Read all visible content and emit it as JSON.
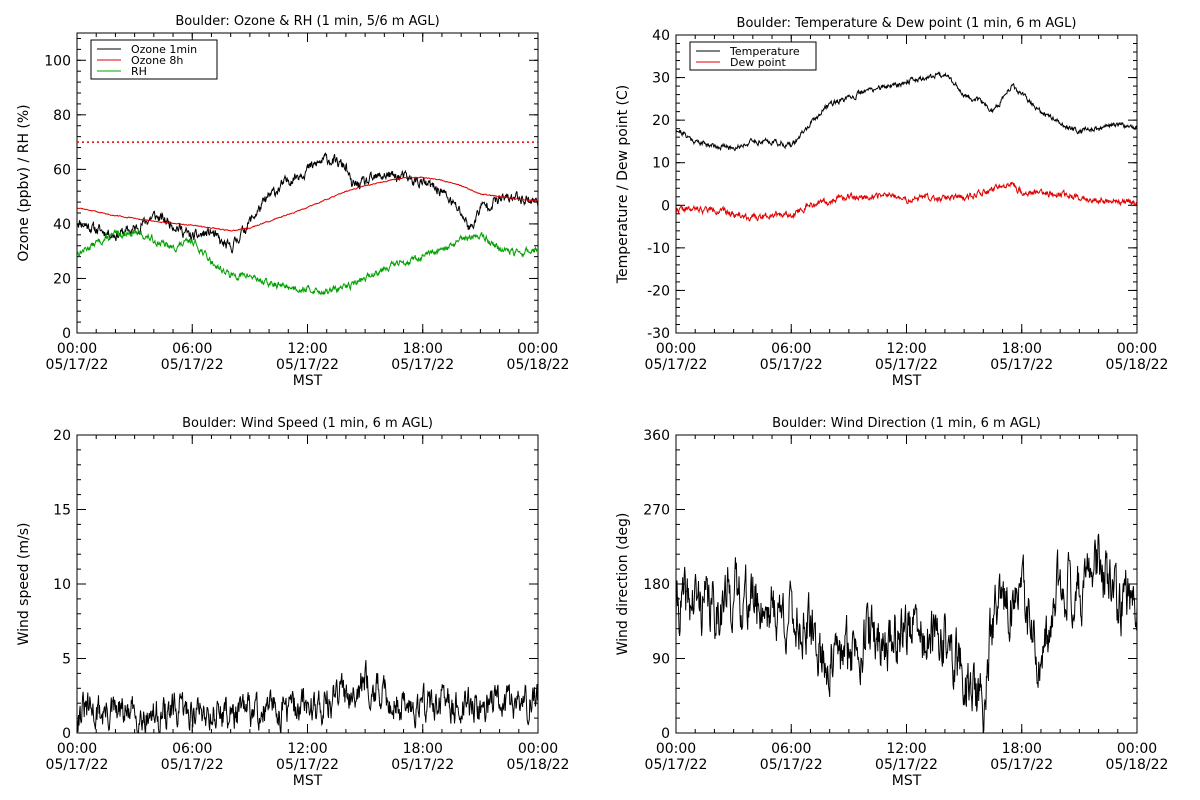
{
  "colors": {
    "black": "#000000",
    "red": "#e00000",
    "green": "#00a000"
  },
  "x_axis": {
    "title": "MST",
    "range_hours": [
      0,
      24
    ],
    "ticks": [
      {
        "h": 0,
        "time": "00:00",
        "date": "05/17/22"
      },
      {
        "h": 6,
        "time": "06:00",
        "date": "05/17/22"
      },
      {
        "h": 12,
        "time": "12:00",
        "date": "05/17/22"
      },
      {
        "h": 18,
        "time": "18:00",
        "date": "05/17/22"
      },
      {
        "h": 24,
        "time": "00:00",
        "date": "05/18/22"
      }
    ]
  },
  "chart_data": [
    {
      "type": "line",
      "title": "Boulder: Ozone & RH (1 min, 5/6 m AGL)",
      "xlabel": "MST",
      "ylabel": "Ozone (ppbv) / RH (%)",
      "ylim": [
        0,
        110
      ],
      "yticks": [
        0,
        20,
        40,
        60,
        80,
        100
      ],
      "legend": "top-left",
      "reference_line": {
        "y": 70,
        "color": "#e00000",
        "style": "dotted"
      },
      "series": [
        {
          "name": "Ozone 1min",
          "color": "#000000",
          "noise": 1.6,
          "seed": 11,
          "points": [
            [
              0,
              41
            ],
            [
              1,
              38
            ],
            [
              2,
              36
            ],
            [
              3,
              38
            ],
            [
              4,
              43
            ],
            [
              5,
              40
            ],
            [
              6,
              35
            ],
            [
              7,
              37
            ],
            [
              7.5,
              33
            ],
            [
              8,
              31
            ],
            [
              9,
              41
            ],
            [
              10,
              50
            ],
            [
              11,
              56
            ],
            [
              12,
              60
            ],
            [
              13,
              64
            ],
            [
              14,
              61
            ],
            [
              14.3,
              54
            ],
            [
              15,
              55
            ],
            [
              16,
              58
            ],
            [
              17,
              57
            ],
            [
              18,
              55
            ],
            [
              19,
              52
            ],
            [
              20,
              44
            ],
            [
              20.5,
              38
            ],
            [
              21,
              46
            ],
            [
              22,
              49
            ],
            [
              23,
              50
            ],
            [
              24,
              48
            ]
          ]
        },
        {
          "name": "Ozone 8h",
          "color": "#e00000",
          "noise": 0.15,
          "seed": 12,
          "points": [
            [
              0,
              46
            ],
            [
              2,
              43
            ],
            [
              4,
              41
            ],
            [
              6,
              39.5
            ],
            [
              8,
              37.5
            ],
            [
              9,
              38.5
            ],
            [
              10,
              41
            ],
            [
              12,
              46
            ],
            [
              13,
              49
            ],
            [
              14,
              52
            ],
            [
              15,
              54
            ],
            [
              17,
              57
            ],
            [
              18,
              57
            ],
            [
              19,
              56
            ],
            [
              20,
              54
            ],
            [
              21,
              51
            ],
            [
              22,
              50
            ],
            [
              23,
              49
            ],
            [
              24,
              48.5
            ]
          ]
        },
        {
          "name": "RH",
          "color": "#00a000",
          "noise": 1.0,
          "seed": 13,
          "points": [
            [
              0,
              29
            ],
            [
              1,
              33
            ],
            [
              2,
              36
            ],
            [
              3,
              37
            ],
            [
              4,
              34
            ],
            [
              5,
              31
            ],
            [
              6,
              34
            ],
            [
              7,
              26
            ],
            [
              8,
              21
            ],
            [
              9,
              21
            ],
            [
              10,
              18
            ],
            [
              12,
              16
            ],
            [
              13,
              15
            ],
            [
              14,
              17
            ],
            [
              15,
              20
            ],
            [
              16,
              24
            ],
            [
              17,
              26
            ],
            [
              18,
              28
            ],
            [
              19,
              30
            ],
            [
              20,
              34
            ],
            [
              21,
              36
            ],
            [
              22,
              31
            ],
            [
              23,
              29
            ],
            [
              24,
              31
            ]
          ]
        }
      ]
    },
    {
      "type": "line",
      "title": "Boulder: Temperature & Dew point (1 min, 6 m AGL)",
      "xlabel": "MST",
      "ylabel": "Temperature / Dew point (C)",
      "ylim": [
        -30,
        40
      ],
      "yticks": [
        -30,
        -20,
        -10,
        0,
        10,
        20,
        30,
        40
      ],
      "legend": "top-left",
      "series": [
        {
          "name": "Temperature",
          "color": "#000000",
          "noise": 0.5,
          "seed": 21,
          "points": [
            [
              0,
              18
            ],
            [
              1,
              15
            ],
            [
              2,
              14
            ],
            [
              3,
              13.5
            ],
            [
              4,
              15
            ],
            [
              5,
              15
            ],
            [
              6,
              14
            ],
            [
              7,
              19
            ],
            [
              8,
              24
            ],
            [
              9,
              25
            ],
            [
              10,
              27
            ],
            [
              11,
              28
            ],
            [
              12,
              29
            ],
            [
              13,
              30
            ],
            [
              14,
              31
            ],
            [
              15,
              26
            ],
            [
              16,
              24
            ],
            [
              16.5,
              22
            ],
            [
              17,
              25
            ],
            [
              17.5,
              28
            ],
            [
              18,
              26
            ],
            [
              19,
              22
            ],
            [
              20,
              19
            ],
            [
              21,
              17.5
            ],
            [
              22,
              18
            ],
            [
              23,
              19
            ],
            [
              24,
              18.5
            ]
          ]
        },
        {
          "name": "Dew point",
          "color": "#e00000",
          "noise": 0.6,
          "seed": 22,
          "points": [
            [
              0,
              -1
            ],
            [
              2,
              -1
            ],
            [
              3,
              -2
            ],
            [
              4,
              -3
            ],
            [
              5,
              -2
            ],
            [
              6,
              -2
            ],
            [
              7,
              0
            ],
            [
              8,
              1
            ],
            [
              9,
              2
            ],
            [
              10,
              2
            ],
            [
              11,
              2.5
            ],
            [
              12,
              1
            ],
            [
              13,
              2
            ],
            [
              14,
              1.5
            ],
            [
              15,
              2
            ],
            [
              16,
              3
            ],
            [
              17,
              4
            ],
            [
              17.5,
              5
            ],
            [
              18,
              3
            ],
            [
              19,
              3
            ],
            [
              20,
              2.5
            ],
            [
              21,
              2
            ],
            [
              22,
              1
            ],
            [
              23,
              1
            ],
            [
              24,
              0.5
            ]
          ]
        }
      ]
    },
    {
      "type": "line",
      "title": "Boulder: Wind Speed (1 min, 6 m AGL)",
      "xlabel": "MST",
      "ylabel": "Wind speed (m/s)",
      "ylim": [
        0,
        20
      ],
      "yticks": [
        0,
        5,
        10,
        15,
        20
      ],
      "series": [
        {
          "name": "",
          "color": "#000000",
          "noise": 0.9,
          "seed": 31,
          "min": 0,
          "points": [
            [
              0,
              1.5
            ],
            [
              2,
              1.3
            ],
            [
              4,
              1.2
            ],
            [
              6,
              1.5
            ],
            [
              8,
              1.3
            ],
            [
              10,
              1.5
            ],
            [
              12,
              1.8
            ],
            [
              13,
              2
            ],
            [
              14,
              2.8
            ],
            [
              15,
              3.5
            ],
            [
              16,
              2.5
            ],
            [
              17,
              1.8
            ],
            [
              18,
              2
            ],
            [
              20,
              1.8
            ],
            [
              22,
              2
            ],
            [
              24,
              2
            ]
          ]
        }
      ]
    },
    {
      "type": "line",
      "title": "Boulder: Wind Direction (1 min, 6 m AGL)",
      "xlabel": "MST",
      "ylabel": "Wind direction (deg)",
      "ylim": [
        0,
        360
      ],
      "yticks": [
        0,
        90,
        180,
        270,
        360
      ],
      "series": [
        {
          "name": "",
          "color": "#000000",
          "noise": 28,
          "seed": 41,
          "min": 0,
          "max": 360,
          "points": [
            [
              0,
              150
            ],
            [
              1,
              160
            ],
            [
              2,
              150
            ],
            [
              3,
              170
            ],
            [
              4,
              160
            ],
            [
              5,
              150
            ],
            [
              6,
              140
            ],
            [
              7,
              120
            ],
            [
              8,
              80
            ],
            [
              9,
              100
            ],
            [
              10,
              120
            ],
            [
              11,
              110
            ],
            [
              12,
              130
            ],
            [
              13,
              110
            ],
            [
              14,
              110
            ],
            [
              15,
              70
            ],
            [
              16,
              30
            ],
            [
              16.5,
              140
            ],
            [
              17,
              150
            ],
            [
              18,
              170
            ],
            [
              18.5,
              120
            ],
            [
              19,
              60
            ],
            [
              20,
              190
            ],
            [
              21,
              170
            ],
            [
              22,
              210
            ],
            [
              23,
              150
            ],
            [
              24,
              170
            ]
          ]
        }
      ]
    }
  ]
}
